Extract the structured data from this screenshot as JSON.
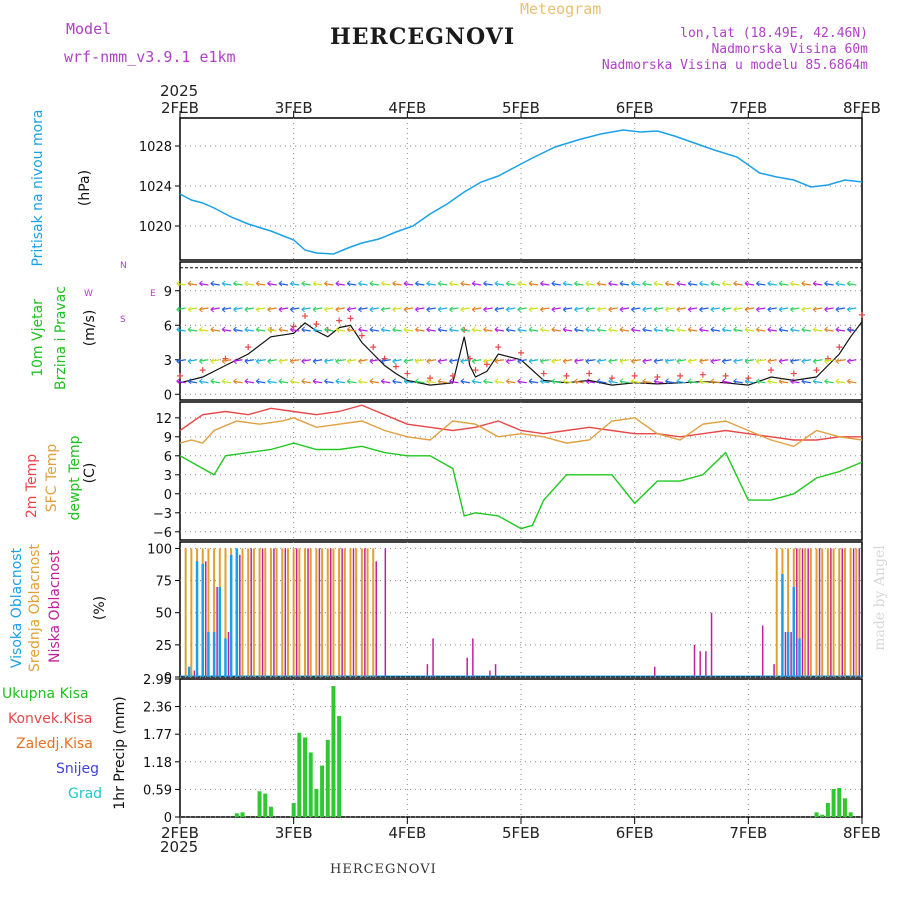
{
  "header": {
    "model_label": "Model",
    "model_name": "wrf-nmm_v3.9.1 e1km",
    "station": "HERCEGNOVI",
    "meteogram": "Meteogram",
    "lonlat": "lon,lat (18.49E, 42.46N)",
    "altitude": "Nadmorska Visina 60m",
    "model_altitude": "Nadmorska Visina u modelu 85.6864m",
    "footer_station": "HERCEGNOVI",
    "credit": "made by Angel"
  },
  "colors": {
    "purple": "#b040c8",
    "gold": "#e8b040",
    "pressure": "#1aa0e8",
    "temp2m": "#e84848",
    "sfc": "#e0a040",
    "dew": "#20c820",
    "precip": "#30c830",
    "high_cloud": "#1aa0e8",
    "mid_cloud": "#e0a030",
    "low_cloud": "#c020a0",
    "grad": "#20c8c8",
    "snow": "#4040e0",
    "freezing": "#e87020",
    "convective": "#e84848"
  },
  "time_axis": {
    "year": "2025",
    "labels": [
      "2FEB",
      "3FEB",
      "4FEB",
      "5FEB",
      "6FEB",
      "7FEB",
      "8FEB"
    ]
  },
  "panels": {
    "pressure": {
      "title": "Pritisak na nivou mora",
      "unit": "(hPa)"
    },
    "wind": {
      "title1": "10m Vjetar",
      "title2": "Brzina i Pravac",
      "unit": "(m/s)",
      "compass_n": "N",
      "compass_w": "W",
      "compass_e": "E",
      "compass_s": "S"
    },
    "temp": {
      "t1": "2m Temp",
      "t2": "SFC Temp",
      "t3": "dewpt Temp",
      "unit": "(C)"
    },
    "cloud": {
      "c1": "Visoka Oblacnost",
      "c2": "Srednja Oblacnost",
      "c3": "Niska Oblacnost",
      "unit": "(%)"
    },
    "precip": {
      "legend": [
        "Ukupna Kisa",
        "Konvek.Kisa",
        "Zaledj.Kisa",
        "Snijeg",
        "Grad"
      ],
      "unit": "1hr Precip (mm)"
    }
  },
  "chart_data": [
    {
      "type": "line",
      "title": "Pritisak na nivou mora",
      "ylabel": "(hPa)",
      "x_days": [
        0,
        0.1,
        0.2,
        0.3,
        0.45,
        0.6,
        0.8,
        1.0,
        1.1,
        1.2,
        1.35,
        1.5,
        1.6,
        1.75,
        1.9,
        2.05,
        2.2,
        2.35,
        2.5,
        2.65,
        2.8,
        2.95,
        3.1,
        3.3,
        3.5,
        3.7,
        3.9,
        4.05,
        4.2,
        4.35,
        4.5,
        4.7,
        4.9,
        5.1,
        5.25,
        5.4,
        5.55,
        5.7,
        5.85,
        6.0
      ],
      "values": [
        1023.2,
        1022.6,
        1022.3,
        1021.8,
        1020.9,
        1020.2,
        1019.5,
        1018.6,
        1017.6,
        1017.3,
        1017.2,
        1017.9,
        1018.3,
        1018.7,
        1019.4,
        1020.0,
        1021.2,
        1022.2,
        1023.4,
        1024.4,
        1025.0,
        1025.9,
        1026.8,
        1027.9,
        1028.6,
        1029.2,
        1029.6,
        1029.4,
        1029.5,
        1029.0,
        1028.4,
        1027.6,
        1026.9,
        1025.3,
        1024.9,
        1024.6,
        1023.9,
        1024.1,
        1024.6,
        1024.4
      ],
      "yticks": [
        1020,
        1024,
        1028
      ],
      "ylim": [
        1016.6,
        1030.8
      ]
    },
    {
      "type": "line",
      "title": "10m Vjetar",
      "ylabel": "(m/s)",
      "series": [
        {
          "x_days": [
            0,
            0.2,
            0.4,
            0.6,
            0.8,
            1.0,
            1.1,
            1.2,
            1.3,
            1.4,
            1.5,
            1.6,
            1.7,
            1.8,
            1.9,
            2.0,
            2.2,
            2.4,
            2.5,
            2.55,
            2.6,
            2.7,
            2.8,
            3.0,
            3.2,
            3.4,
            3.6,
            3.8,
            4.0,
            4.2,
            4.4,
            4.6,
            4.8,
            5.0,
            5.2,
            5.4,
            5.6,
            5.7,
            5.8,
            5.9,
            6.0
          ],
          "values": [
            1.0,
            1.5,
            2.5,
            3.5,
            5.0,
            5.3,
            6.2,
            5.5,
            5.0,
            5.8,
            6.0,
            4.5,
            3.5,
            2.5,
            1.8,
            1.2,
            0.8,
            1.0,
            5.0,
            2.5,
            1.5,
            2.0,
            3.5,
            3.0,
            1.2,
            1.0,
            1.2,
            0.8,
            1.0,
            0.9,
            1.0,
            1.1,
            1.0,
            0.8,
            1.5,
            1.2,
            1.5,
            2.5,
            3.5,
            5.0,
            6.3
          ]
        }
      ],
      "ylim": [
        -0.5,
        11.5
      ],
      "yticks": [
        0,
        3,
        6,
        9
      ]
    },
    {
      "type": "line",
      "title": "2m Temp",
      "ylabel": "(C)",
      "series": [
        {
          "name": "2m Temp",
          "x_days": [
            0,
            0.2,
            0.4,
            0.6,
            0.8,
            1.0,
            1.2,
            1.4,
            1.6,
            1.8,
            2.0,
            2.2,
            2.4,
            2.6,
            2.8,
            3.0,
            3.2,
            3.4,
            3.6,
            3.8,
            4.0,
            4.2,
            4.4,
            4.6,
            4.8,
            5.0,
            5.2,
            5.4,
            5.6,
            5.8,
            6.0
          ],
          "values": [
            10,
            12.5,
            13,
            12.5,
            13.5,
            13,
            12.5,
            13,
            14,
            12.5,
            11,
            10.5,
            10,
            10.5,
            11.5,
            10,
            9.5,
            10,
            10.5,
            10,
            9.5,
            9.5,
            9,
            9.5,
            10,
            9.5,
            9,
            8.5,
            8.5,
            9,
            9
          ]
        },
        {
          "name": "SFC Temp",
          "x_days": [
            0,
            0.1,
            0.2,
            0.3,
            0.5,
            0.7,
            0.9,
            1.0,
            1.2,
            1.4,
            1.6,
            1.8,
            2.0,
            2.2,
            2.4,
            2.6,
            2.8,
            3.0,
            3.2,
            3.4,
            3.6,
            3.8,
            4.0,
            4.2,
            4.4,
            4.6,
            4.8,
            5.0,
            5.2,
            5.4,
            5.6,
            5.8,
            6.0
          ],
          "values": [
            8,
            8.5,
            8,
            10,
            11.5,
            11,
            11.5,
            12,
            10.5,
            11,
            11.5,
            10,
            9,
            8.5,
            11.5,
            11,
            9,
            9.5,
            9,
            8,
            8.5,
            11.5,
            12,
            9.5,
            8.5,
            11,
            11.5,
            10,
            8.5,
            7.5,
            10,
            9,
            8.5
          ]
        },
        {
          "name": "dewpt Temp",
          "x_days": [
            0,
            0.1,
            0.2,
            0.3,
            0.4,
            0.6,
            0.8,
            1.0,
            1.2,
            1.4,
            1.6,
            1.8,
            2.0,
            2.2,
            2.4,
            2.5,
            2.6,
            2.8,
            3.0,
            3.1,
            3.2,
            3.4,
            3.6,
            3.8,
            4.0,
            4.2,
            4.4,
            4.6,
            4.8,
            5.0,
            5.2,
            5.4,
            5.6,
            5.8,
            6.0
          ],
          "values": [
            6,
            5,
            4,
            3,
            6,
            6.5,
            7,
            8,
            7,
            7,
            7.5,
            6.5,
            6,
            6,
            4,
            -3.5,
            -3,
            -3.5,
            -5.5,
            -5,
            -1,
            3,
            3,
            3,
            -1.5,
            2,
            2,
            3,
            6.5,
            -1,
            -1,
            0,
            2.5,
            3.5,
            5
          ]
        }
      ],
      "yticks": [
        -6,
        -3,
        0,
        3,
        6,
        9,
        12
      ],
      "ylim": [
        -7.3,
        14.5
      ]
    },
    {
      "type": "bar",
      "title": "Visoka Oblacnost",
      "ylabel": "(%)",
      "series": [
        {
          "name": "Srednja Oblacnost",
          "x_days": [
            0.05,
            0.1,
            0.15,
            0.2,
            0.25,
            0.3,
            0.35,
            0.4,
            0.45,
            0.5,
            0.55,
            0.6,
            0.65,
            0.7,
            0.75,
            0.8,
            0.85,
            0.9,
            0.95,
            1.0,
            1.05,
            1.1,
            1.15,
            1.2,
            1.25,
            1.3,
            1.35,
            1.4,
            1.45,
            1.5,
            1.55,
            1.6,
            1.65,
            1.7,
            5.25,
            5.3,
            5.35,
            5.4,
            5.45,
            5.5,
            5.55,
            5.6,
            5.65,
            5.7,
            5.75,
            5.8,
            5.85,
            5.9,
            5.95
          ],
          "values": [
            100,
            100,
            100,
            100,
            100,
            100,
            100,
            100,
            100,
            100,
            100,
            100,
            100,
            100,
            100,
            100,
            100,
            100,
            100,
            100,
            100,
            100,
            100,
            100,
            100,
            100,
            100,
            100,
            100,
            100,
            100,
            100,
            100,
            100,
            100,
            100,
            100,
            100,
            100,
            100,
            100,
            100,
            100,
            100,
            100,
            100,
            100,
            100,
            100
          ]
        },
        {
          "name": "Niska Oblacnost",
          "x_days": [
            0.1,
            0.2,
            0.3,
            0.4,
            0.5,
            0.6,
            0.7,
            0.8,
            0.9,
            1.0,
            1.1,
            1.2,
            1.3,
            1.4,
            1.5,
            1.6,
            1.7,
            1.78,
            2.15,
            2.2,
            2.5,
            2.55,
            2.7,
            2.75,
            4.15,
            4.5,
            4.55,
            4.6,
            4.65,
            5.1,
            5.2,
            5.3,
            5.35,
            5.4,
            5.45,
            5.5,
            5.6,
            5.7,
            5.8,
            5.9,
            5.95
          ],
          "values": [
            5,
            90,
            70,
            35,
            95,
            100,
            100,
            100,
            100,
            100,
            100,
            100,
            100,
            100,
            100,
            100,
            90,
            100,
            10,
            30,
            15,
            30,
            5,
            10,
            8,
            25,
            20,
            20,
            50,
            40,
            10,
            35,
            35,
            100,
            100,
            100,
            100,
            100,
            100,
            100,
            100
          ]
        },
        {
          "name": "Visoka Oblacnost",
          "x_days": [
            0.08,
            0.15,
            0.2,
            0.25,
            0.3,
            0.35,
            0.4,
            0.45,
            0.5,
            5.3,
            5.35,
            5.4,
            5.45
          ],
          "values": [
            8,
            90,
            88,
            35,
            35,
            70,
            30,
            95,
            100,
            80,
            35,
            70,
            30
          ]
        }
      ],
      "yticks": [
        0,
        25,
        50,
        75,
        100
      ],
      "ylim": [
        0,
        105
      ]
    },
    {
      "type": "bar",
      "title": "Ukupna Kisa",
      "ylabel": "1hr Precip (mm)",
      "x_days": [
        0.5,
        0.55,
        0.7,
        0.75,
        0.8,
        1.0,
        1.05,
        1.1,
        1.15,
        1.2,
        1.25,
        1.3,
        1.35,
        1.4,
        5.6,
        5.65,
        5.7,
        5.75,
        5.8,
        5.85,
        5.9
      ],
      "values": [
        0.08,
        0.1,
        0.55,
        0.5,
        0.22,
        0.3,
        1.8,
        1.7,
        1.38,
        0.6,
        1.1,
        1.65,
        2.8,
        2.16,
        0.1,
        0.05,
        0.3,
        0.6,
        0.62,
        0.4,
        0.1
      ],
      "yticks": [
        0,
        0.59,
        1.18,
        1.77,
        2.36,
        2.95
      ],
      "ylim": [
        0,
        2.95
      ]
    }
  ]
}
